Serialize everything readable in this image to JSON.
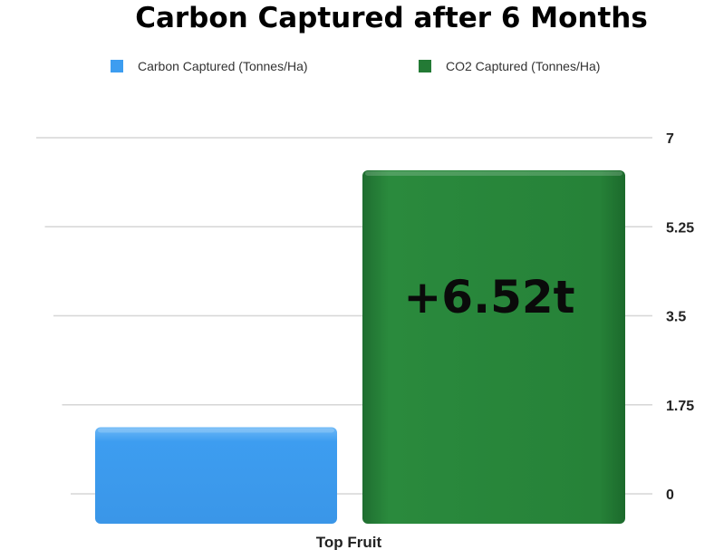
{
  "chart_data": {
    "type": "bar",
    "title": "Carbon Captured after 6 Months",
    "categories": [
      "Top Fruit"
    ],
    "series": [
      {
        "name": "Carbon Captured (Tonnes/Ha)",
        "values": [
          1.78
        ],
        "color": "#3d9df0"
      },
      {
        "name": "CO2 Captured (Tonnes/Ha)",
        "values": [
          6.52
        ],
        "color": "#237a35"
      }
    ],
    "yticks": [
      "0",
      "1.75",
      "3.5",
      "5.25",
      "7"
    ],
    "ylim": [
      0,
      7
    ],
    "grid": true,
    "legend": "top",
    "axis_side": "right",
    "annotation": "+6.52t"
  }
}
